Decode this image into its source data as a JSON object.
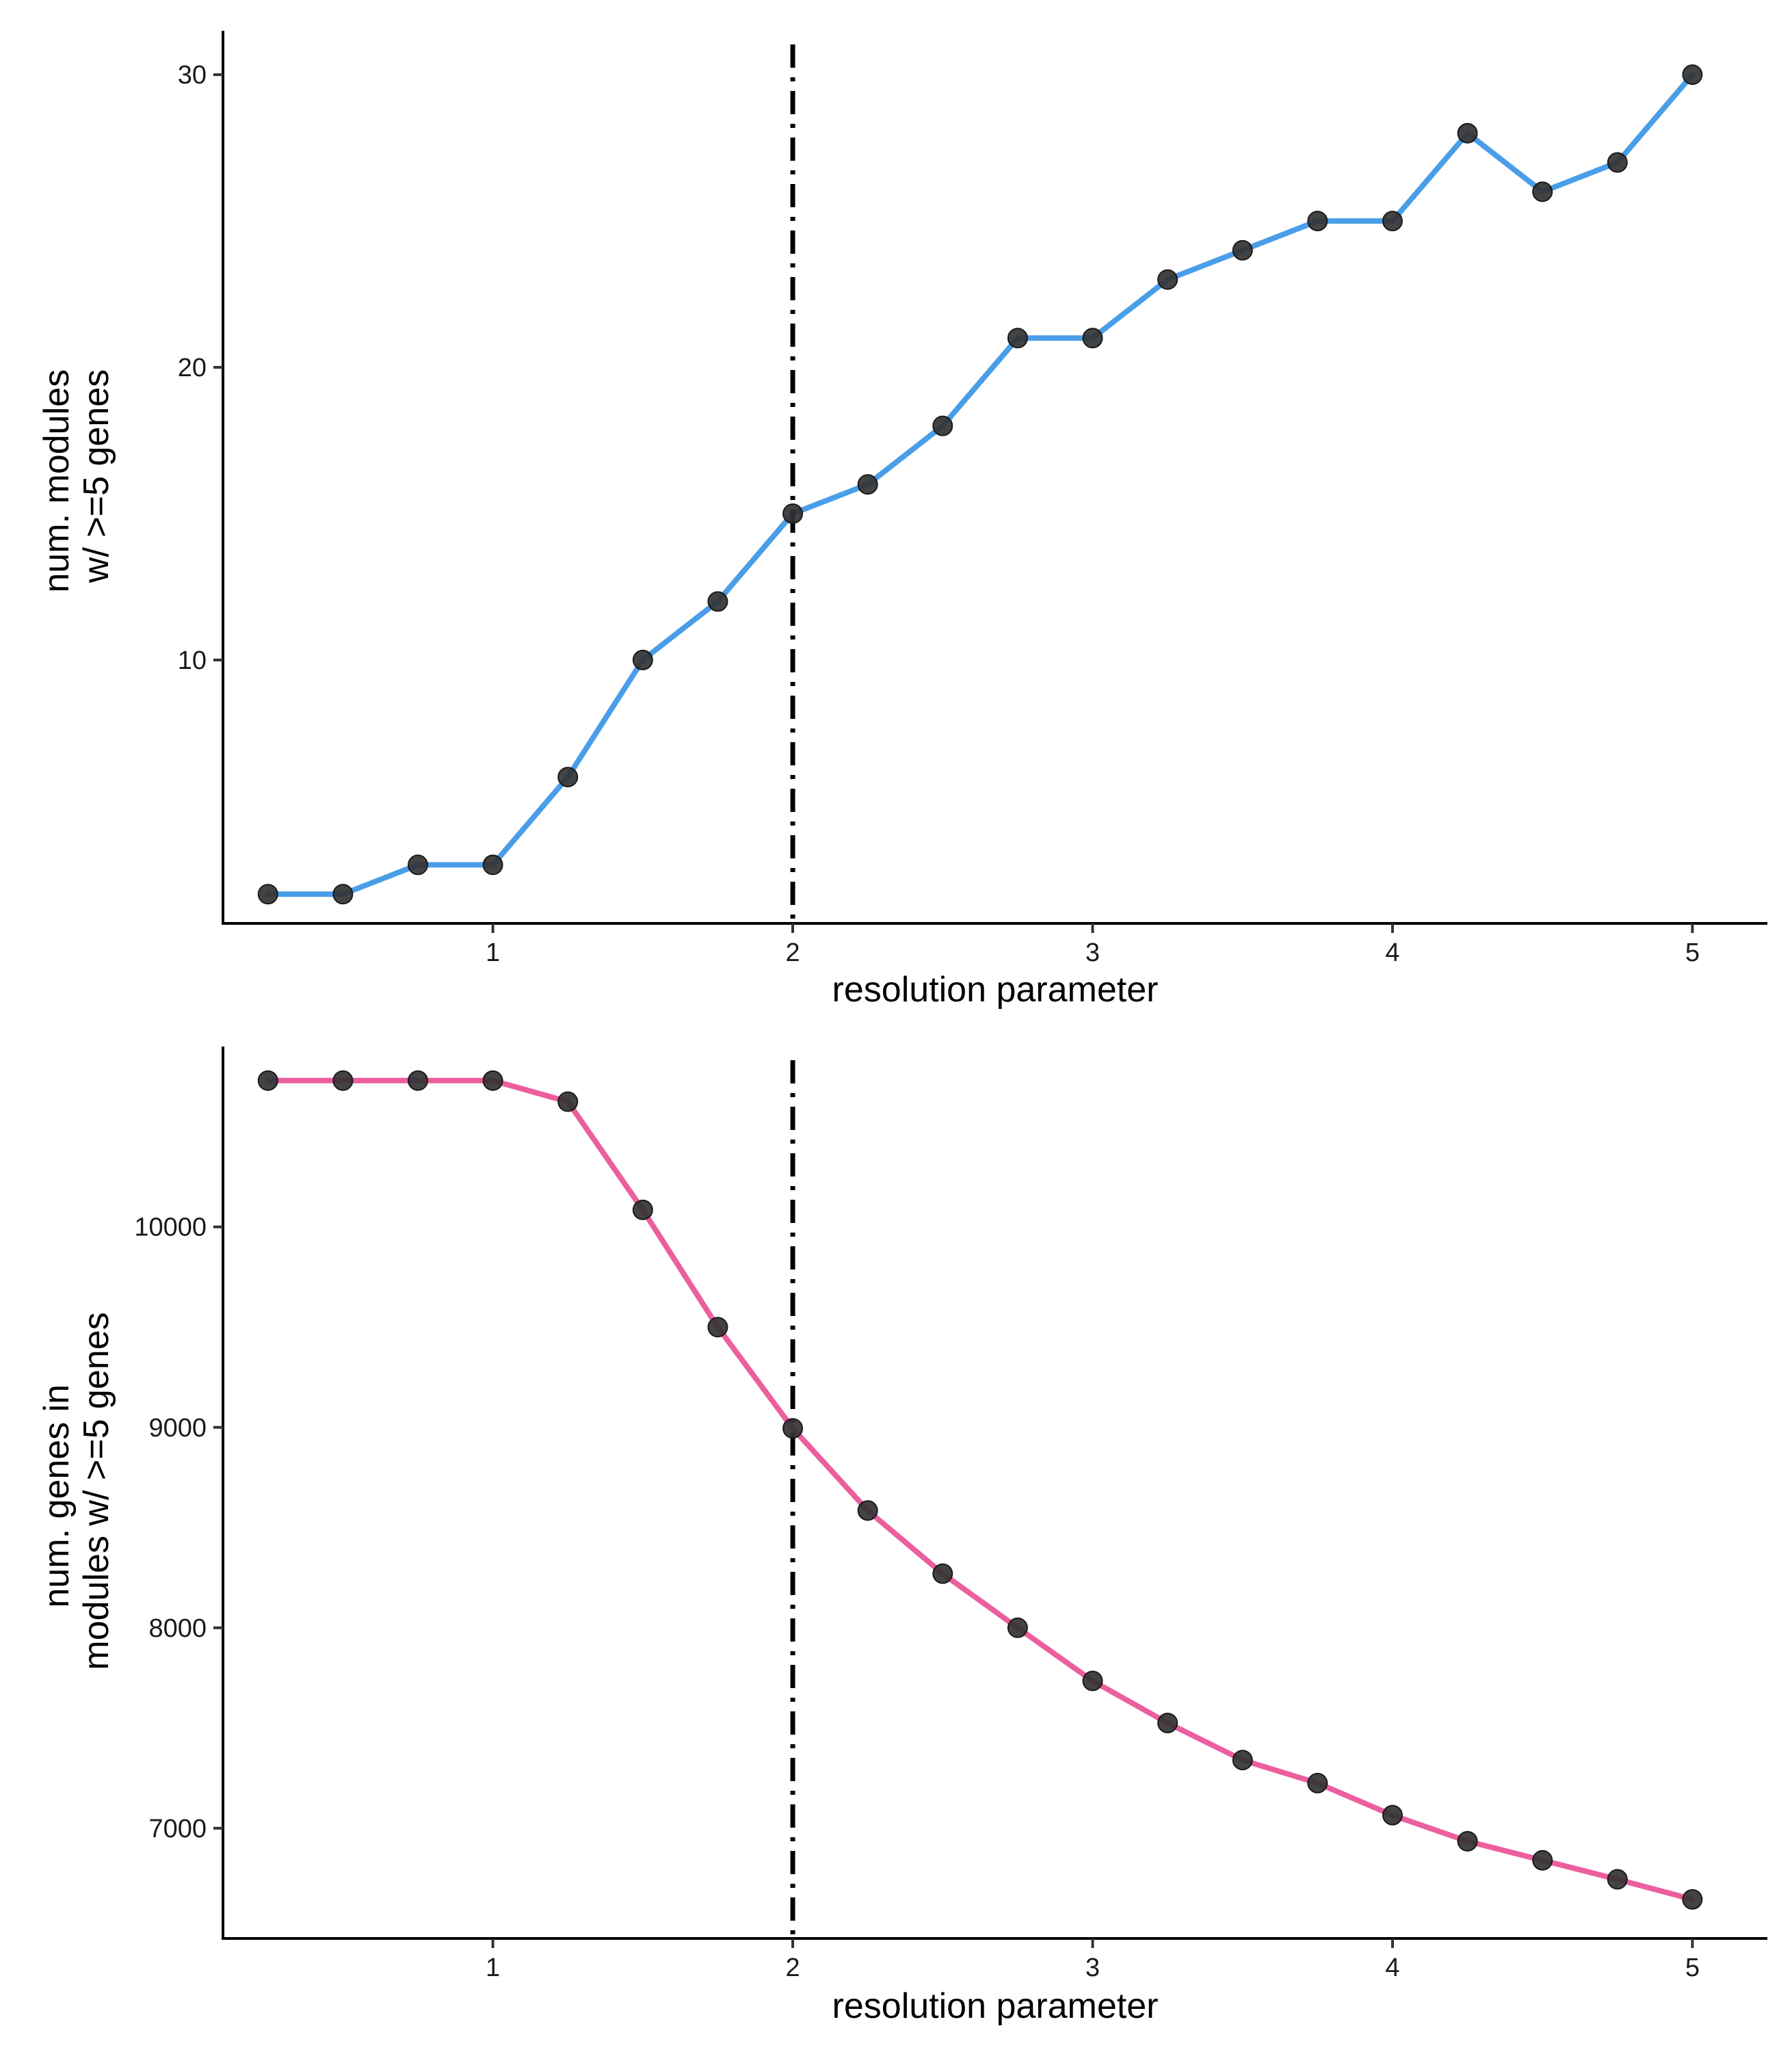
{
  "chart_data": [
    {
      "type": "line",
      "xlabel": "resolution parameter",
      "ylabel_lines": [
        "num. modules",
        "w/ >=5 genes"
      ],
      "xlim": [
        0.1,
        5.25
      ],
      "ylim": [
        1,
        31.5
      ],
      "x_ticks": [
        1,
        2,
        3,
        4,
        5
      ],
      "y_ticks": [
        10,
        20,
        30
      ],
      "vline_x": 2,
      "grid": false,
      "legend": "none",
      "line_color": "#4a9ee8",
      "point_color": "#333333",
      "series": [
        {
          "x": [
            0.25,
            0.5,
            0.75,
            1,
            1.25,
            1.5,
            1.75,
            2,
            2.25,
            2.5,
            2.75,
            3,
            3.25,
            3.5,
            3.75,
            4,
            4.25,
            4.5,
            4.75,
            5
          ],
          "values": [
            2,
            2,
            3,
            3,
            6,
            10,
            12,
            15,
            16,
            18,
            21,
            21,
            23,
            24,
            25,
            25,
            28,
            26,
            27,
            30
          ]
        }
      ]
    },
    {
      "type": "line",
      "xlabel": "resolution parameter",
      "ylabel_lines": [
        "num. genes in",
        "modules w/ >=5 genes"
      ],
      "xlim": [
        0.1,
        5.25
      ],
      "ylim": [
        6450,
        10900
      ],
      "x_ticks": [
        1,
        2,
        3,
        4,
        5
      ],
      "y_ticks": [
        7000,
        8000,
        9000,
        10000
      ],
      "vline_x": 2,
      "grid": false,
      "legend": "none",
      "line_color": "#ec5f9f",
      "point_color": "#333333",
      "series": [
        {
          "x": [
            0.25,
            0.5,
            0.75,
            1,
            1.25,
            1.5,
            1.75,
            2,
            2.25,
            2.5,
            2.75,
            3,
            3.25,
            3.5,
            3.75,
            4,
            4.25,
            4.5,
            4.75,
            5
          ],
          "values": [
            10730,
            10730,
            10730,
            10730,
            10625,
            10085,
            9500,
            8995,
            8585,
            8270,
            8000,
            7735,
            7525,
            7340,
            7225,
            7065,
            6935,
            6840,
            6745,
            6645
          ]
        }
      ]
    }
  ]
}
